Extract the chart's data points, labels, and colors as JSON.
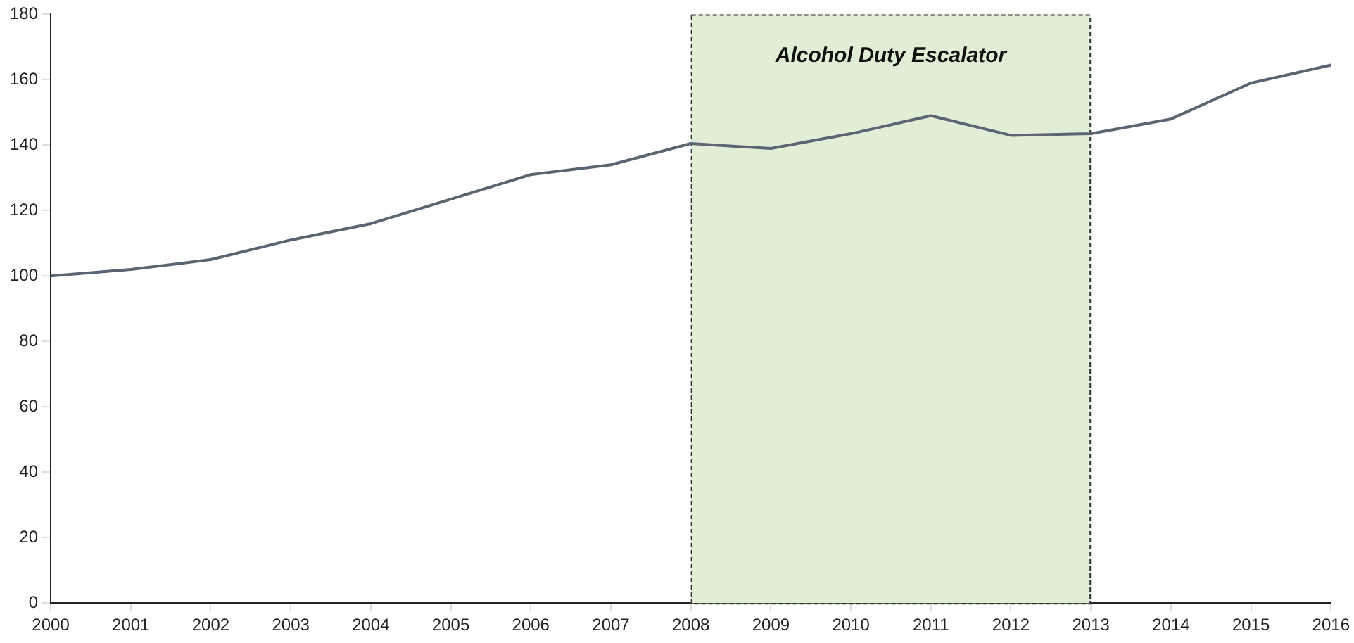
{
  "chart_data": {
    "type": "line",
    "x": [
      2000,
      2001,
      2002,
      2003,
      2004,
      2005,
      2006,
      2007,
      2008,
      2009,
      2010,
      2011,
      2012,
      2013,
      2014,
      2015,
      2016
    ],
    "series": [
      {
        "color": "#5a6573",
        "values": [
          100,
          102,
          105,
          111,
          116,
          123.5,
          131,
          134,
          140.5,
          139,
          143.5,
          149,
          143,
          143.5,
          148,
          159,
          164.5
        ]
      }
    ],
    "xlim": [
      2000,
      2016
    ],
    "xticks": [
      2000,
      2001,
      2002,
      2003,
      2004,
      2005,
      2006,
      2007,
      2008,
      2009,
      2010,
      2011,
      2012,
      2013,
      2014,
      2015,
      2016
    ],
    "ylim": [
      0,
      180
    ],
    "yticks": [
      0,
      20,
      40,
      60,
      80,
      100,
      120,
      140,
      160,
      180
    ],
    "bands": [
      {
        "axis": "x",
        "from": 2008,
        "to": 2013,
        "label": "Alcohol Duty Escalator",
        "color": "#e0eed6"
      }
    ],
    "grid": false,
    "legend": false,
    "marker": "none",
    "line_style": "solid"
  }
}
